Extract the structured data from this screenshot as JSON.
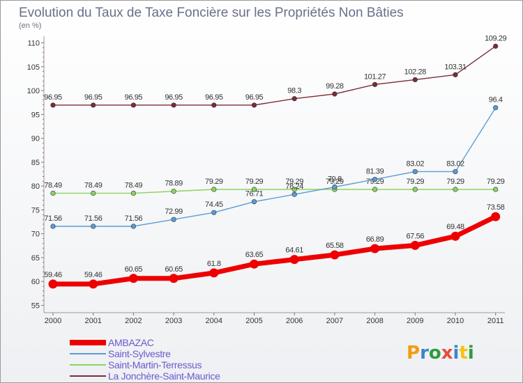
{
  "chart_data": {
    "type": "line",
    "title": "Evolution du Taux de Taxe Foncière sur les Propriétés Non Bâties",
    "subtitle": "(en %)",
    "categories": [
      "2000",
      "2001",
      "2002",
      "2003",
      "2004",
      "2005",
      "2006",
      "2007",
      "2008",
      "2009",
      "2010",
      "2011"
    ],
    "ylim": [
      55,
      110
    ],
    "yticks": [
      55,
      60,
      65,
      70,
      75,
      80,
      85,
      90,
      95,
      100,
      105,
      110
    ],
    "grid": false,
    "legend_position": "bottom-left",
    "series": [
      {
        "name": "AMBAZAC",
        "color": "#ee0000",
        "values": [
          59.46,
          59.46,
          60.65,
          60.65,
          61.8,
          63.65,
          64.61,
          65.58,
          66.89,
          67.56,
          69.48,
          73.58
        ],
        "labels": [
          "59.46",
          "59.46",
          "60.65",
          "60.65",
          "61.8",
          "63.65",
          "64.61",
          "65.58",
          "66.89",
          "67.56",
          "69.48",
          "73.58"
        ]
      },
      {
        "name": "Saint-Sylvestre",
        "color": "#5b9bd5",
        "values": [
          71.56,
          71.56,
          71.56,
          72.99,
          74.45,
          76.71,
          78.24,
          79.8,
          81.39,
          83.02,
          83.02,
          96.4
        ],
        "labels": [
          "71.56",
          "71.56",
          "71.56",
          "72.99",
          "74.45",
          "76.71",
          "78.24",
          "79.8",
          "81.39",
          "83.02",
          "83.02",
          "96.4"
        ]
      },
      {
        "name": "Saint-Martin-Terressus",
        "color": "#8dd35f",
        "values": [
          78.49,
          78.49,
          78.49,
          78.89,
          79.29,
          79.29,
          79.29,
          79.29,
          79.29,
          79.29,
          79.29,
          79.29
        ],
        "labels": [
          "78.49",
          "78.49",
          "78.49",
          "78.89",
          "79.29",
          "79.29",
          "79.29",
          "79.29",
          "79.29",
          "79.29",
          "79.29",
          "79.29"
        ]
      },
      {
        "name": "La Jonchère-Saint-Maurice",
        "color": "#7b2c36",
        "values": [
          96.95,
          96.95,
          96.95,
          96.95,
          96.95,
          96.95,
          98.3,
          99.28,
          101.27,
          102.28,
          103.31,
          109.29
        ],
        "labels": [
          "96.95",
          "96.95",
          "96.95",
          "96.95",
          "96.95",
          "96.95",
          "98.3",
          "99.28",
          "101.27",
          "102.28",
          "103.31",
          "109.29"
        ]
      }
    ]
  },
  "logo": {
    "text": "Proxiti",
    "colors": [
      "#f39c12",
      "#3a86c8",
      "#2e9b3c",
      "#e74c3c",
      "#3a86c8",
      "#f1c40f",
      "#2e9b3c"
    ]
  }
}
